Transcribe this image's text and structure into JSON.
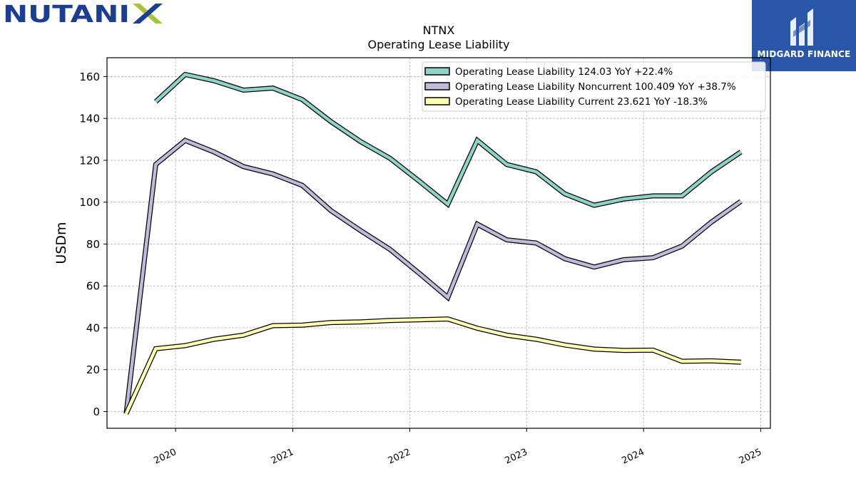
{
  "branding": {
    "company_logo": "NUTANIX",
    "publisher": "MIDGARD FINANCE",
    "publisher_icon": "midgard-m-icon",
    "logo_colors": {
      "nutanix_text": "#1d3d8f",
      "nutanix_x": "#a8c23a",
      "badge_bg": "#2a57a8"
    }
  },
  "chart_data": {
    "type": "line",
    "title": "NTNX",
    "subtitle": "Operating Lease Liability",
    "xlabel": "",
    "ylabel": "USDm",
    "ylim": [
      -8,
      169
    ],
    "xlim": [
      "2019-06-01",
      "2025-01-31"
    ],
    "y_ticks": [
      0,
      20,
      40,
      60,
      80,
      100,
      120,
      140,
      160
    ],
    "x_ticks": [
      {
        "label": "2020",
        "date": "2020-01-01"
      },
      {
        "label": "2021",
        "date": "2021-01-01"
      },
      {
        "label": "2022",
        "date": "2022-01-01"
      },
      {
        "label": "2023",
        "date": "2023-01-01"
      },
      {
        "label": "2024",
        "date": "2024-01-01"
      },
      {
        "label": "2025",
        "date": "2025-01-01"
      }
    ],
    "grid": true,
    "legend_position": "top-right",
    "series": [
      {
        "name": "Operating Lease Liability  124.03 YoY +22.4%",
        "color": "#8dd3c7",
        "points": [
          [
            "2019-10-31",
            148.0
          ],
          [
            "2020-01-31",
            161.0
          ],
          [
            "2020-04-30",
            158.0
          ],
          [
            "2020-07-31",
            153.5
          ],
          [
            "2020-10-31",
            154.5
          ],
          [
            "2021-01-31",
            149.0
          ],
          [
            "2021-04-30",
            138.5
          ],
          [
            "2021-07-31",
            129.0
          ],
          [
            "2021-10-31",
            121.0
          ],
          [
            "2022-01-31",
            110.0
          ],
          [
            "2022-04-30",
            99.0
          ],
          [
            "2022-07-31",
            129.5
          ],
          [
            "2022-10-31",
            118.0
          ],
          [
            "2023-01-31",
            114.5
          ],
          [
            "2023-04-30",
            104.0
          ],
          [
            "2023-07-31",
            98.5
          ],
          [
            "2023-10-31",
            101.5
          ],
          [
            "2024-01-31",
            103.0
          ],
          [
            "2024-04-30",
            103.0
          ],
          [
            "2024-07-31",
            114.5
          ],
          [
            "2024-10-31",
            124.0
          ]
        ]
      },
      {
        "name": "Operating Lease Liability Noncurrent  100.409 YoY +38.7%",
        "color": "#bebada",
        "points": [
          [
            "2019-07-31",
            -1.0
          ],
          [
            "2019-10-31",
            118.0
          ],
          [
            "2020-01-31",
            129.5
          ],
          [
            "2020-04-30",
            124.0
          ],
          [
            "2020-07-31",
            117.0
          ],
          [
            "2020-10-31",
            113.5
          ],
          [
            "2021-01-31",
            108.0
          ],
          [
            "2021-04-30",
            96.0
          ],
          [
            "2021-07-31",
            86.5
          ],
          [
            "2021-10-31",
            77.5
          ],
          [
            "2022-01-31",
            66.0
          ],
          [
            "2022-04-30",
            54.5
          ],
          [
            "2022-07-31",
            89.5
          ],
          [
            "2022-10-31",
            82.0
          ],
          [
            "2023-01-31",
            80.5
          ],
          [
            "2023-04-30",
            73.0
          ],
          [
            "2023-07-31",
            69.0
          ],
          [
            "2023-10-31",
            72.5
          ],
          [
            "2024-01-31",
            73.5
          ],
          [
            "2024-04-30",
            79.0
          ],
          [
            "2024-07-31",
            90.5
          ],
          [
            "2024-10-31",
            100.4
          ]
        ]
      },
      {
        "name": "Operating Lease Liability Current  23.621 YoY -18.3%",
        "color": "#ffffb3",
        "points": [
          [
            "2019-07-31",
            -1.0
          ],
          [
            "2019-10-31",
            30.0
          ],
          [
            "2020-01-31",
            31.5
          ],
          [
            "2020-04-30",
            34.5
          ],
          [
            "2020-07-31",
            36.5
          ],
          [
            "2020-10-31",
            41.0
          ],
          [
            "2021-01-31",
            41.3
          ],
          [
            "2021-04-30",
            42.5
          ],
          [
            "2021-07-31",
            42.8
          ],
          [
            "2021-10-31",
            43.5
          ],
          [
            "2022-01-31",
            43.8
          ],
          [
            "2022-04-30",
            44.2
          ],
          [
            "2022-07-31",
            39.8
          ],
          [
            "2022-10-31",
            36.5
          ],
          [
            "2023-01-31",
            34.5
          ],
          [
            "2023-04-30",
            31.8
          ],
          [
            "2023-07-31",
            29.8
          ],
          [
            "2023-10-31",
            29.2
          ],
          [
            "2024-01-31",
            29.3
          ],
          [
            "2024-04-30",
            24.0
          ],
          [
            "2024-07-31",
            24.2
          ],
          [
            "2024-10-31",
            23.6
          ]
        ]
      }
    ]
  }
}
